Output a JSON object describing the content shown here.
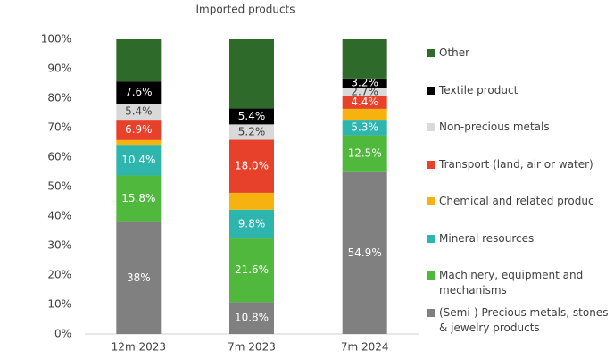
{
  "chart_data": {
    "type": "stacked_bar",
    "title": "Imported products",
    "categories": [
      "12m 2023",
      "7m 2023",
      "7m 2024"
    ],
    "ylim": [
      0,
      100
    ],
    "yticks": [
      {
        "value": 0,
        "label": "0%"
      },
      {
        "value": 10,
        "label": "10%"
      },
      {
        "value": 20,
        "label": "20%"
      },
      {
        "value": 30,
        "label": "30%"
      },
      {
        "value": 40,
        "label": "40%"
      },
      {
        "value": 50,
        "label": "50%"
      },
      {
        "value": 60,
        "label": "60%"
      },
      {
        "value": 70,
        "label": "70%"
      },
      {
        "value": 80,
        "label": "80%"
      },
      {
        "value": 90,
        "label": "90%"
      },
      {
        "value": 100,
        "label": "100%"
      }
    ],
    "grid": false,
    "series": [
      {
        "name": "(Semi-) Precious metals, stones & jewelry products",
        "color": "#808080",
        "values": [
          38,
          10.8,
          54.9
        ],
        "value_labels": [
          "38%",
          "10.8%",
          "54.9%"
        ]
      },
      {
        "name": "Machinery, equipment and mechanisms",
        "color": "#50b83c",
        "values": [
          15.8,
          21.6,
          12.5
        ],
        "value_labels": [
          "15.8%",
          "21.6%",
          "12.5%"
        ]
      },
      {
        "name": "Mineral resources",
        "color": "#2db5ae",
        "values": [
          10.4,
          9.8,
          5.3
        ],
        "value_labels": [
          "10.4%",
          "9.8%",
          "5.3%"
        ]
      },
      {
        "name": "Chemical and related produc",
        "color": "#f6b20e",
        "values": [
          1.6,
          5.7,
          3.7
        ],
        "value_labels": [
          null,
          null,
          null
        ]
      },
      {
        "name": "Transport (land, air or water)",
        "color": "#e8412b",
        "values": [
          6.9,
          18.0,
          4.4
        ],
        "value_labels": [
          "6.9%",
          "18.0%",
          "4.4%"
        ]
      },
      {
        "name": "Non-precious metals",
        "color": "#d9d9d9",
        "values": [
          5.4,
          5.2,
          2.7
        ],
        "value_labels": [
          "5.4%",
          "5.2%",
          "2.7%"
        ]
      },
      {
        "name": "Textile product",
        "color": "#000000",
        "values": [
          7.6,
          5.4,
          3.2
        ],
        "value_labels": [
          "7.6%",
          "5.4%",
          "3.2%"
        ]
      },
      {
        "name": "Other",
        "color": "#2e6b2a",
        "values": [
          14.3,
          23.5,
          13.3
        ],
        "value_labels": [
          null,
          null,
          null
        ]
      }
    ]
  }
}
